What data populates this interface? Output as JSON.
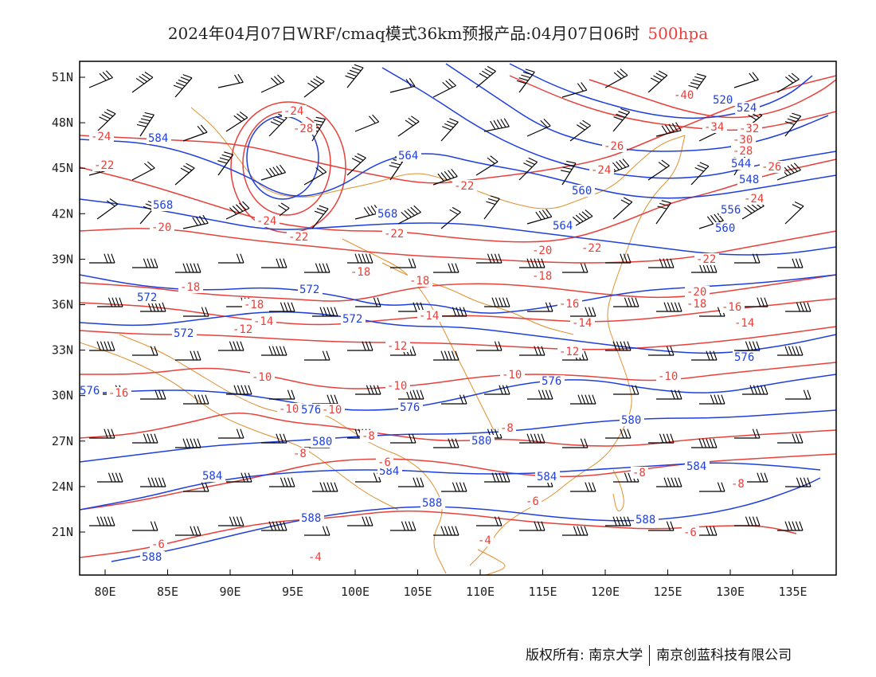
{
  "title": {
    "main": "2024年04月07日WRF/cmaq模式36km预报产品:04月07日06时",
    "level": "500hpa"
  },
  "axes": {
    "lon_labels": [
      "80E",
      "85E",
      "90E",
      "95E",
      "100E",
      "105E",
      "110E",
      "115E",
      "120E",
      "125E",
      "130E",
      "135E"
    ],
    "lat_labels": [
      "51N",
      "48N",
      "45N",
      "42N",
      "39N",
      "36N",
      "33N",
      "30N",
      "27N",
      "24N",
      "21N"
    ]
  },
  "colors": {
    "height_contour": "#1f3fdc",
    "temperature_contour": "#e8403a",
    "coastline_border": "#e0902f",
    "wind_barb": "#000000"
  },
  "height_labels": [
    "520",
    "524",
    "544",
    "548",
    "556",
    "560",
    "564",
    "568",
    "572",
    "576",
    "580",
    "584",
    "588"
  ],
  "temperature_labels": [
    "-40",
    "-34",
    "-32",
    "-30",
    "-28",
    "-26",
    "-24",
    "-22",
    "-20",
    "-18",
    "-16",
    "-14",
    "-12",
    "-10",
    "-8",
    "-6",
    "-4"
  ],
  "footer": {
    "owner": "版权所有: 南京大学",
    "company": "南京创蓝科技有限公司"
  }
}
